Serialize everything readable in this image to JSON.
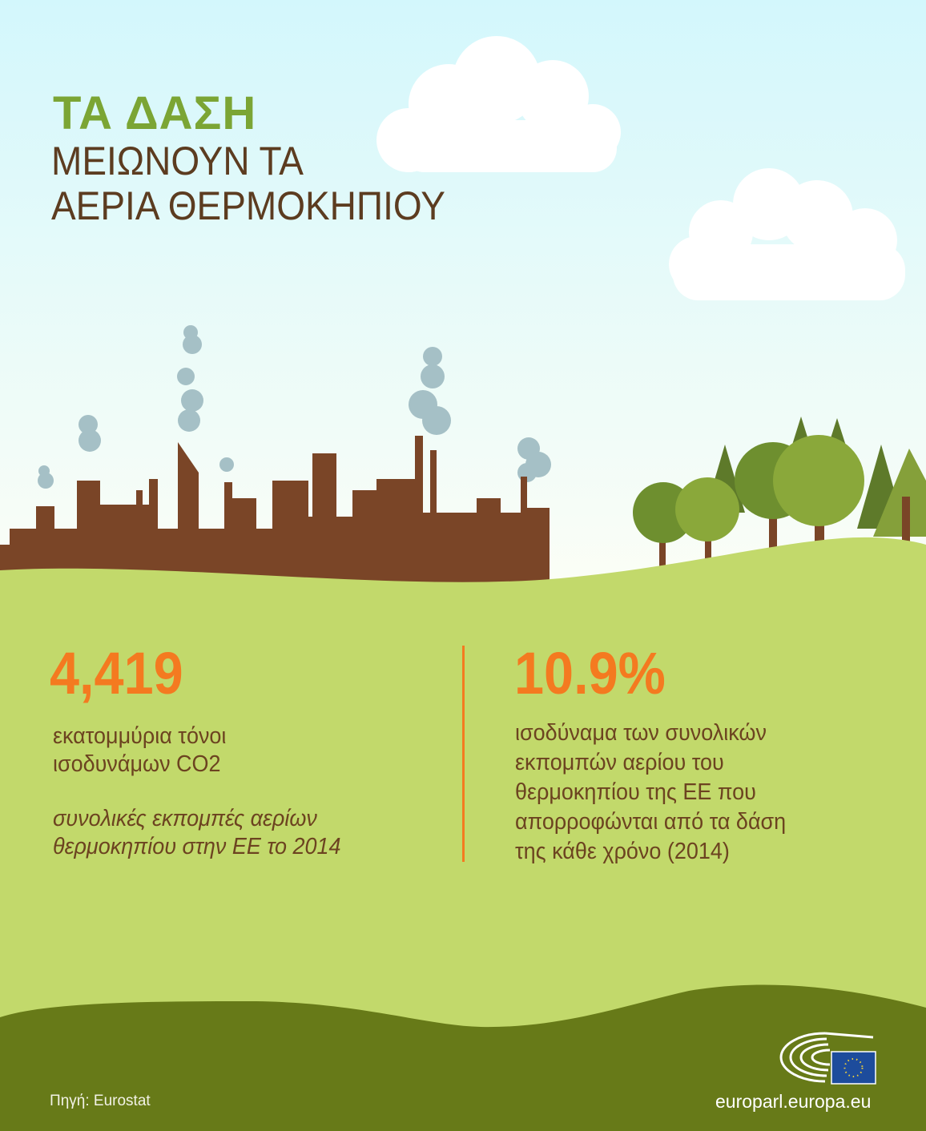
{
  "header": {
    "title": "ΤΑ ΔΑΣΗ",
    "subtitle_lines": [
      "ΜΕΙΩΝΟΥΝ ΤΑ",
      "ΑΕΡΙΑ ΘΕΡΜΟΚΗΠΙΟΥ"
    ]
  },
  "stats": [
    {
      "value": "4,419",
      "unit_lines": [
        "εκατομμύρια τόνοι",
        "ισοδυνάμων CO2"
      ],
      "note_lines": [
        "συνολικές εκπομπές αερίων",
        "θερμοκηπίου στην ΕΕ το 2014"
      ]
    },
    {
      "value": "10.9%",
      "desc_lines": [
        "ισοδύναμα των συνολικών",
        "εκπομπών αερίου του",
        "θερμοκηπίου της ΕΕ που",
        "απορροφώνται από τα δάση",
        "της κάθε χρόνο (2014)"
      ]
    }
  ],
  "footer": {
    "source": "Πηγή: Eurostat",
    "website": "europarl.europa.eu",
    "logo": "european-parliament-logo"
  },
  "colors": {
    "title_green": "#7ba534",
    "accent_orange": "#f47a20",
    "text_brown": "#6c4320",
    "factory_brown": "#7a4527",
    "ground_light": "#c2d96b",
    "ground_dark": "#677a18",
    "sky_top": "#d3f7fc"
  }
}
